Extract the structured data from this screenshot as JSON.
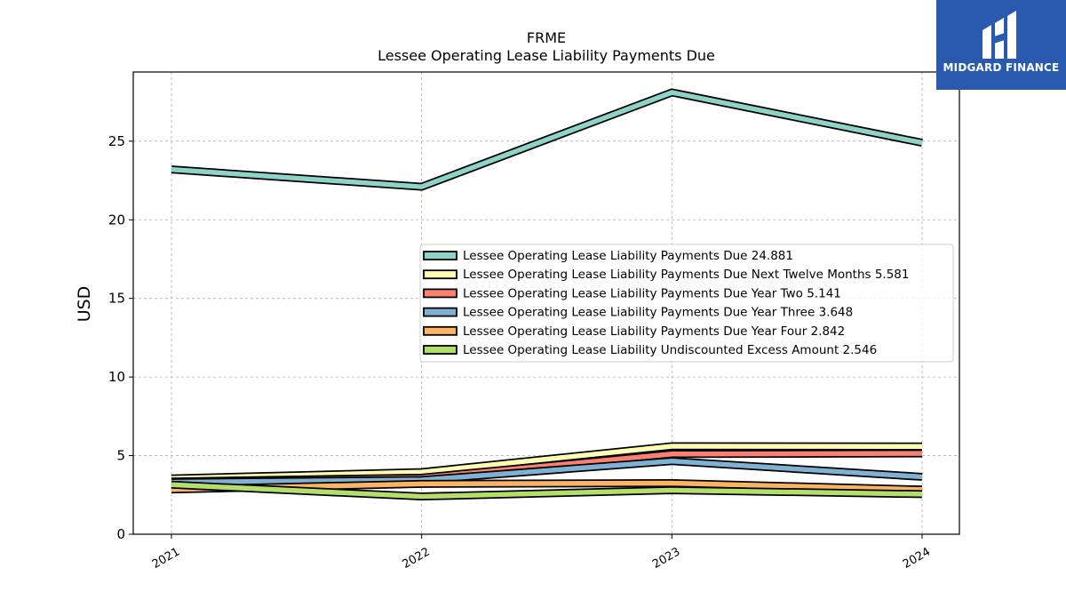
{
  "chart_data": {
    "type": "area",
    "title": "FRME",
    "subtitle": "Lessee Operating Lease Liability Payments Due",
    "xlabel": "",
    "ylabel": "USD",
    "x": [
      "2021",
      "2022",
      "2023",
      "2024"
    ],
    "ylim": [
      0,
      29.4
    ],
    "yticks": [
      0,
      5,
      10,
      15,
      20,
      25
    ],
    "grid": true,
    "legend_position": "center-right",
    "series": [
      {
        "name": "Lessee Operating Lease Liability Payments Due",
        "legend_value": "24.881",
        "values": [
          23.2,
          22.1,
          28.1,
          24.9
        ],
        "color": "#8dd3c7"
      },
      {
        "name": "Lessee Operating Lease Liability Payments Due Next Twelve Months",
        "legend_value": "5.581",
        "values": [
          3.55,
          3.95,
          5.6,
          5.58
        ],
        "color": "#ffffb3"
      },
      {
        "name": "Lessee Operating Lease Liability Payments Due Year Two",
        "legend_value": "5.141",
        "values": [
          3.35,
          3.6,
          5.1,
          5.14
        ],
        "color": "#fb8072"
      },
      {
        "name": "Lessee Operating Lease Liability Payments Due Year Three",
        "legend_value": "3.648",
        "values": [
          3.3,
          3.45,
          4.65,
          3.65
        ],
        "color": "#80b1d3"
      },
      {
        "name": "Lessee Operating Lease Liability Payments Due Year Four",
        "legend_value": "2.842",
        "values": [
          2.85,
          3.2,
          3.25,
          2.84
        ],
        "color": "#fdb462"
      },
      {
        "name": "Lessee Operating Lease Liability Undiscounted Excess Amount",
        "legend_value": "2.546",
        "values": [
          3.15,
          2.4,
          2.8,
          2.55
        ],
        "color": "#b3de69"
      }
    ]
  },
  "logo": {
    "text": "MIDGARD FINANCE",
    "icon": "midgard-logo-icon",
    "background": "#2a5aad"
  }
}
